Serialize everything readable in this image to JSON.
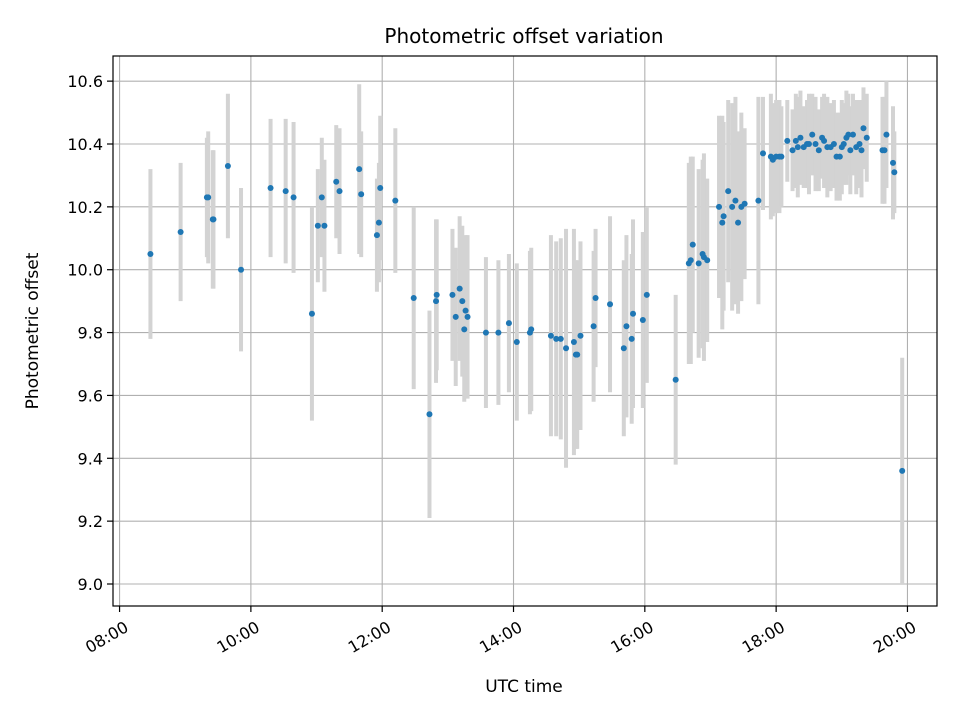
{
  "chart_data": {
    "type": "scatter",
    "title": "Photometric offset variation",
    "xlabel": "UTC time",
    "ylabel": "Photometric offset",
    "xlim": [
      7.9,
      20.45
    ],
    "ylim": [
      8.93,
      10.68
    ],
    "x_ticks": [
      8,
      10,
      12,
      14,
      16,
      18,
      20
    ],
    "x_tick_labels": [
      "08:00",
      "10:00",
      "12:00",
      "14:00",
      "16:00",
      "18:00",
      "20:00"
    ],
    "y_ticks": [
      9.0,
      9.2,
      9.4,
      9.6,
      9.8,
      10.0,
      10.2,
      10.4,
      10.6
    ],
    "y_tick_labels": [
      "9.0",
      "9.2",
      "9.4",
      "9.6",
      "9.8",
      "10.0",
      "10.2",
      "10.4",
      "10.6"
    ],
    "grid": true,
    "marker_color": "#1f77b4",
    "errorbar_color": "#d3d3d3",
    "series": [
      {
        "x": [
          8.47,
          8.93,
          9.33,
          9.35,
          9.42,
          9.43,
          9.65,
          9.85,
          10.3,
          10.53,
          10.65,
          10.93,
          11.02,
          11.08,
          11.12,
          11.3,
          11.35,
          11.65,
          11.68,
          11.92,
          11.95,
          11.97,
          12.2,
          12.48,
          12.72,
          12.82,
          12.83,
          13.07,
          13.12,
          13.18,
          13.22,
          13.25,
          13.27,
          13.3,
          13.58,
          13.77,
          13.93,
          14.05,
          14.25,
          14.27,
          14.57,
          14.65,
          14.72,
          14.8,
          14.92,
          14.95,
          14.97,
          15.02,
          15.22,
          15.25,
          15.47,
          15.68,
          15.72,
          15.8,
          15.82,
          15.97,
          16.03,
          16.47,
          16.67,
          16.7,
          16.73,
          16.82,
          16.88,
          16.9,
          16.95,
          17.13,
          17.18,
          17.2,
          17.27,
          17.33,
          17.38,
          17.42,
          17.47,
          17.52,
          17.73,
          17.8,
          17.92,
          17.95,
          18.0,
          18.05,
          18.08,
          18.17,
          18.25,
          18.3,
          18.33,
          18.37,
          18.42,
          18.47,
          18.5,
          18.55,
          18.6,
          18.65,
          18.7,
          18.73,
          18.78,
          18.83,
          18.88,
          18.92,
          18.97,
          19.0,
          19.03,
          19.07,
          19.1,
          19.13,
          19.17,
          19.22,
          19.27,
          19.3,
          19.33,
          19.38,
          19.62,
          19.65,
          19.68,
          19.78,
          19.8,
          19.92
        ],
        "y": [
          10.05,
          10.12,
          10.23,
          10.23,
          10.16,
          10.16,
          10.33,
          10.0,
          10.26,
          10.25,
          10.23,
          9.86,
          10.14,
          10.23,
          10.14,
          10.28,
          10.25,
          10.32,
          10.24,
          10.11,
          10.15,
          10.26,
          10.22,
          9.91,
          9.54,
          9.9,
          9.92,
          9.92,
          9.85,
          9.94,
          9.9,
          9.81,
          9.87,
          9.85,
          9.8,
          9.8,
          9.83,
          9.77,
          9.8,
          9.81,
          9.79,
          9.78,
          9.78,
          9.75,
          9.77,
          9.73,
          9.73,
          9.79,
          9.82,
          9.91,
          9.89,
          9.75,
          9.82,
          9.78,
          9.86,
          9.84,
          9.92,
          9.65,
          10.02,
          10.03,
          10.08,
          10.02,
          10.05,
          10.04,
          10.03,
          10.2,
          10.15,
          10.17,
          10.25,
          10.2,
          10.22,
          10.15,
          10.2,
          10.21,
          10.22,
          10.37,
          10.36,
          10.35,
          10.36,
          10.36,
          10.36,
          10.41,
          10.38,
          10.41,
          10.39,
          10.42,
          10.39,
          10.4,
          10.4,
          10.43,
          10.4,
          10.38,
          10.42,
          10.41,
          10.39,
          10.39,
          10.4,
          10.36,
          10.36,
          10.39,
          10.4,
          10.42,
          10.43,
          10.38,
          10.43,
          10.39,
          10.4,
          10.38,
          10.45,
          10.42,
          10.38,
          10.38,
          10.43,
          10.34,
          10.31,
          9.36
        ],
        "yerr": [
          0.27,
          0.22,
          0.19,
          0.21,
          0.22,
          0.22,
          0.23,
          0.26,
          0.22,
          0.23,
          0.24,
          0.34,
          0.18,
          0.19,
          0.21,
          0.18,
          0.2,
          0.27,
          0.2,
          0.18,
          0.19,
          0.23,
          0.23,
          0.29,
          0.33,
          0.26,
          0.24,
          0.21,
          0.22,
          0.23,
          0.24,
          0.23,
          0.24,
          0.26,
          0.24,
          0.23,
          0.22,
          0.25,
          0.26,
          0.26,
          0.32,
          0.31,
          0.32,
          0.38,
          0.36,
          0.3,
          0.3,
          0.3,
          0.24,
          0.22,
          0.28,
          0.28,
          0.29,
          0.27,
          0.3,
          0.28,
          0.28,
          0.27,
          0.32,
          0.33,
          0.28,
          0.3,
          0.3,
          0.33,
          0.26,
          0.29,
          0.34,
          0.3,
          0.29,
          0.33,
          0.33,
          0.29,
          0.3,
          0.24,
          0.33,
          0.18,
          0.2,
          0.18,
          0.18,
          0.18,
          0.16,
          0.13,
          0.13,
          0.15,
          0.16,
          0.15,
          0.13,
          0.14,
          0.16,
          0.13,
          0.15,
          0.13,
          0.13,
          0.15,
          0.16,
          0.14,
          0.14,
          0.14,
          0.14,
          0.15,
          0.13,
          0.15,
          0.13,
          0.14,
          0.13,
          0.15,
          0.14,
          0.15,
          0.13,
          0.14,
          0.17,
          0.17,
          0.17,
          0.18,
          0.13,
          0.36
        ]
      }
    ]
  }
}
